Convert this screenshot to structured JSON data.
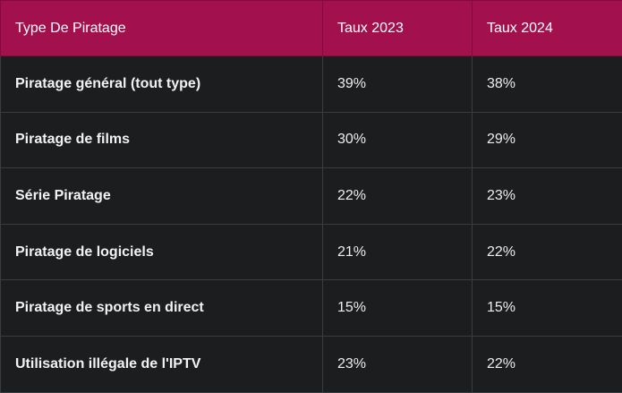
{
  "table": {
    "headers": [
      "Type De Piratage",
      "Taux 2023",
      "Taux 2024"
    ],
    "rows": [
      {
        "type": "Piratage général (tout type)",
        "rate_2023": "39%",
        "rate_2024": "38%"
      },
      {
        "type": "Piratage de films",
        "rate_2023": "30%",
        "rate_2024": "29%"
      },
      {
        "type": "Série Piratage",
        "rate_2023": "22%",
        "rate_2024": "23%"
      },
      {
        "type": "Piratage de logiciels",
        "rate_2023": "21%",
        "rate_2024": "22%"
      },
      {
        "type": "Piratage de sports en direct",
        "rate_2023": "15%",
        "rate_2024": "15%"
      },
      {
        "type": "Utilisation illégale de l'IPTV",
        "rate_2023": "23%",
        "rate_2024": "22%"
      }
    ]
  },
  "colors": {
    "header_bg": "#a3104e",
    "body_bg": "#1b1d1e",
    "border": "#3a3d40"
  }
}
